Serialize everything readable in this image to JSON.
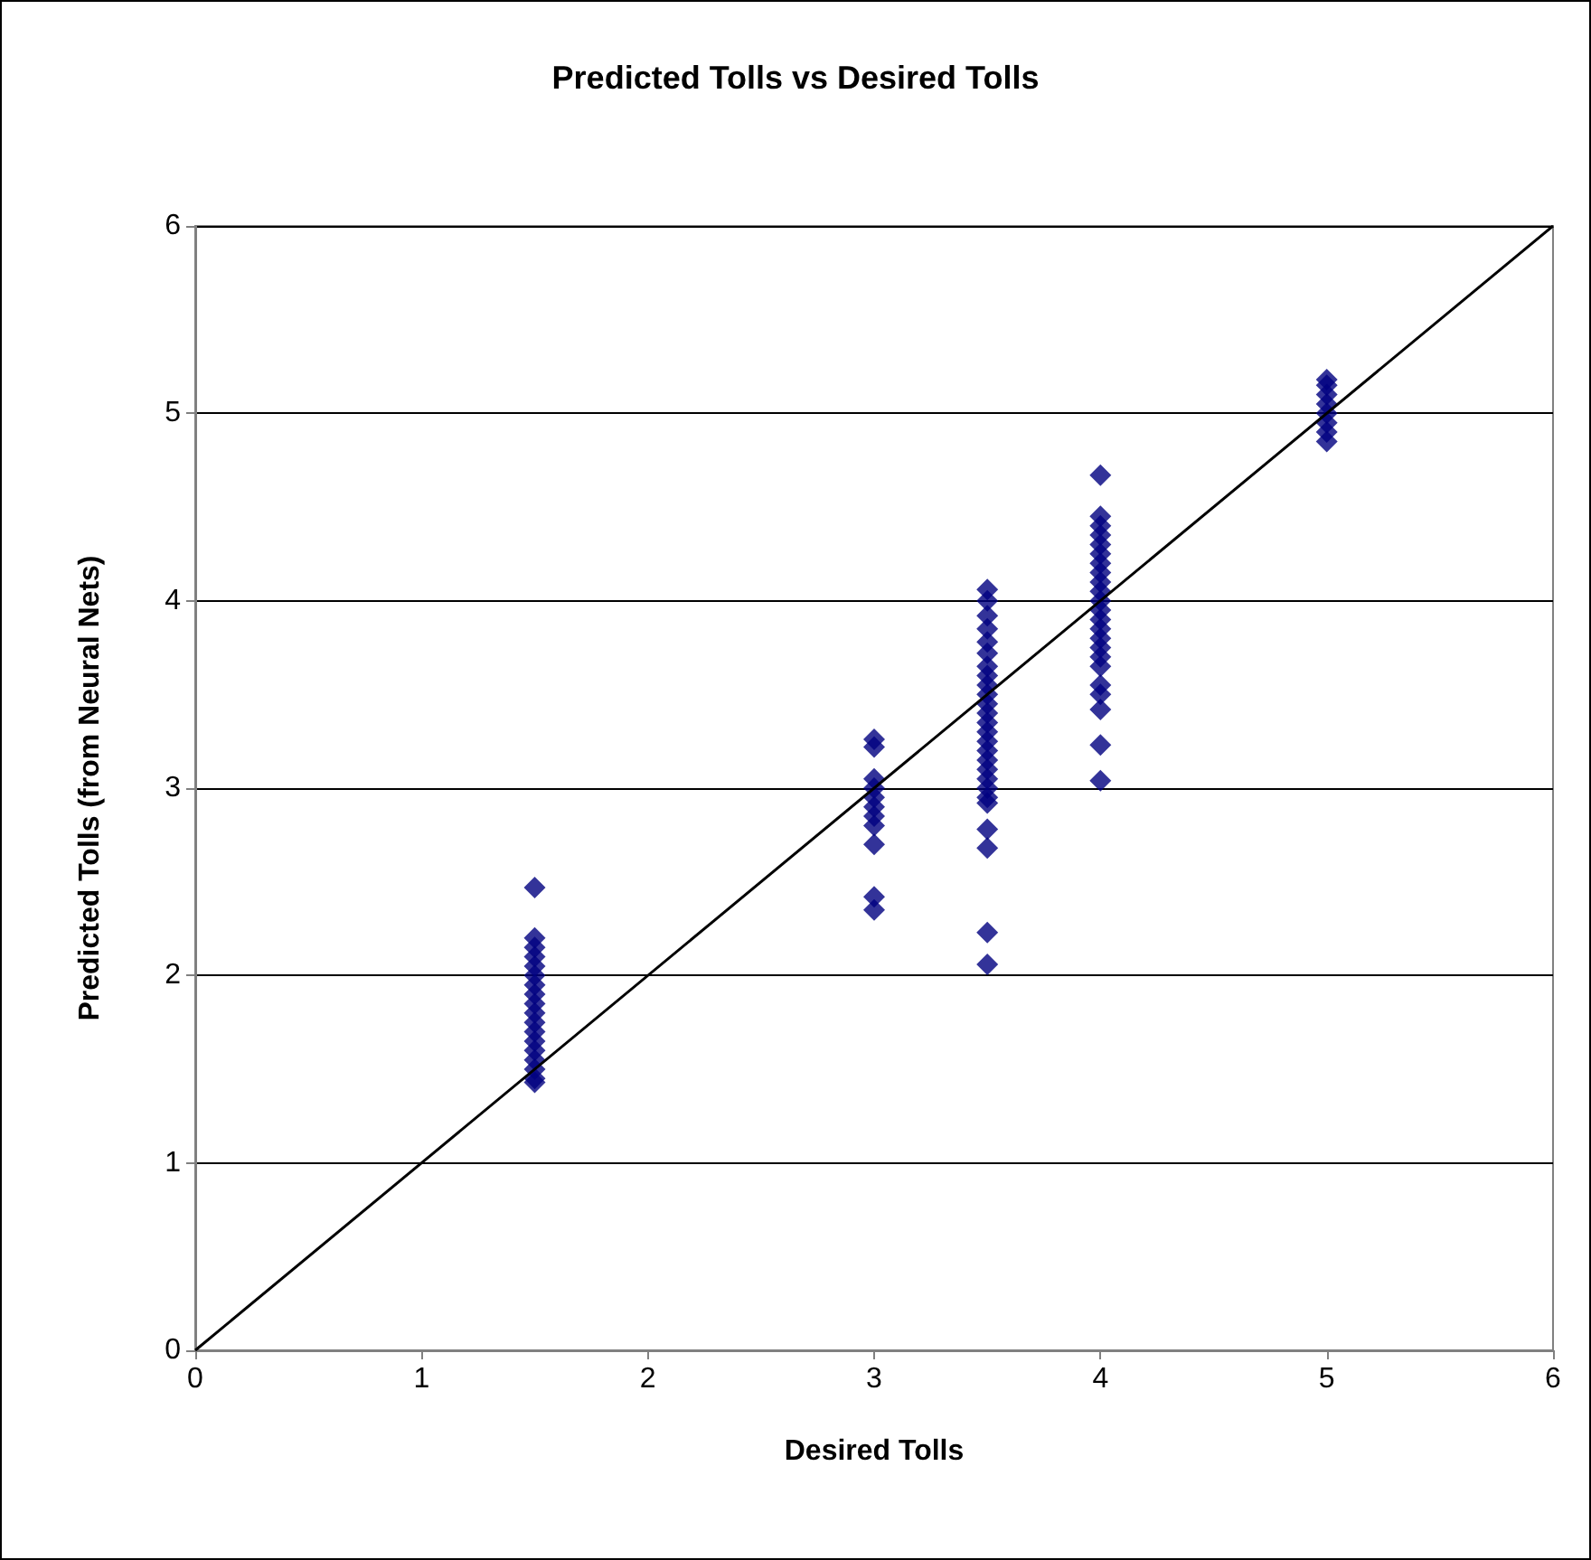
{
  "chart_data": {
    "type": "scatter",
    "title": "Predicted Tolls vs Desired Tolls",
    "xlabel": "Desired Tolls",
    "ylabel": "Predicted Tolls (from Neural Nets)",
    "xlim": [
      0,
      6
    ],
    "xticks": [
      0,
      1,
      2,
      3,
      4,
      5,
      6
    ],
    "ylim": [
      0,
      6
    ],
    "yticks": [
      0,
      1,
      2,
      3,
      4,
      5,
      6
    ],
    "grid": "y",
    "series": [
      {
        "color": "#000080",
        "marker": "diamond",
        "x": [
          1.5,
          1.5,
          1.5,
          1.5,
          1.5,
          1.5,
          1.5,
          1.5,
          1.5,
          1.5,
          1.5,
          1.5,
          1.5,
          1.5,
          1.5,
          1.5,
          1.5,
          1.5,
          3,
          3,
          3,
          3,
          3,
          3,
          3,
          3,
          3,
          3,
          3,
          3.5,
          3.5,
          3.5,
          3.5,
          3.5,
          3.5,
          3.5,
          3.5,
          3.5,
          3.5,
          3.5,
          3.5,
          3.5,
          3.5,
          3.5,
          3.5,
          3.5,
          3.5,
          3.5,
          3.5,
          3.5,
          3.5,
          3.5,
          3.5,
          3.5,
          3.5,
          4,
          4,
          4,
          4,
          4,
          4,
          4,
          4,
          4,
          4,
          4,
          4,
          4,
          4,
          4,
          4,
          4,
          4,
          4,
          4,
          4,
          4,
          4,
          5,
          5,
          5,
          5,
          5,
          5,
          5,
          5
        ],
        "values": [
          2.47,
          2.2,
          2.15,
          2.1,
          2.05,
          2.0,
          1.95,
          1.9,
          1.85,
          1.8,
          1.75,
          1.7,
          1.65,
          1.6,
          1.55,
          1.5,
          1.45,
          1.43,
          3.26,
          3.22,
          3.05,
          3.0,
          2.95,
          2.9,
          2.85,
          2.8,
          2.7,
          2.42,
          2.35,
          4.06,
          4.0,
          3.92,
          3.85,
          3.78,
          3.72,
          3.65,
          3.6,
          3.55,
          3.5,
          3.45,
          3.4,
          3.35,
          3.3,
          3.25,
          3.2,
          3.15,
          3.1,
          3.05,
          3.0,
          2.95,
          2.92,
          2.78,
          2.68,
          2.23,
          2.06,
          4.67,
          4.45,
          4.4,
          4.35,
          4.3,
          4.25,
          4.2,
          4.15,
          4.1,
          4.05,
          4.0,
          3.95,
          3.9,
          3.85,
          3.8,
          3.75,
          3.7,
          3.65,
          3.55,
          3.5,
          3.42,
          3.23,
          3.04,
          5.18,
          5.15,
          5.1,
          5.05,
          5.0,
          4.95,
          4.9,
          4.85
        ]
      },
      {
        "type": "line",
        "color": "#000000",
        "marker": "none",
        "line_style": "solid",
        "x": [
          0,
          6
        ],
        "values": [
          0,
          6
        ]
      }
    ]
  }
}
